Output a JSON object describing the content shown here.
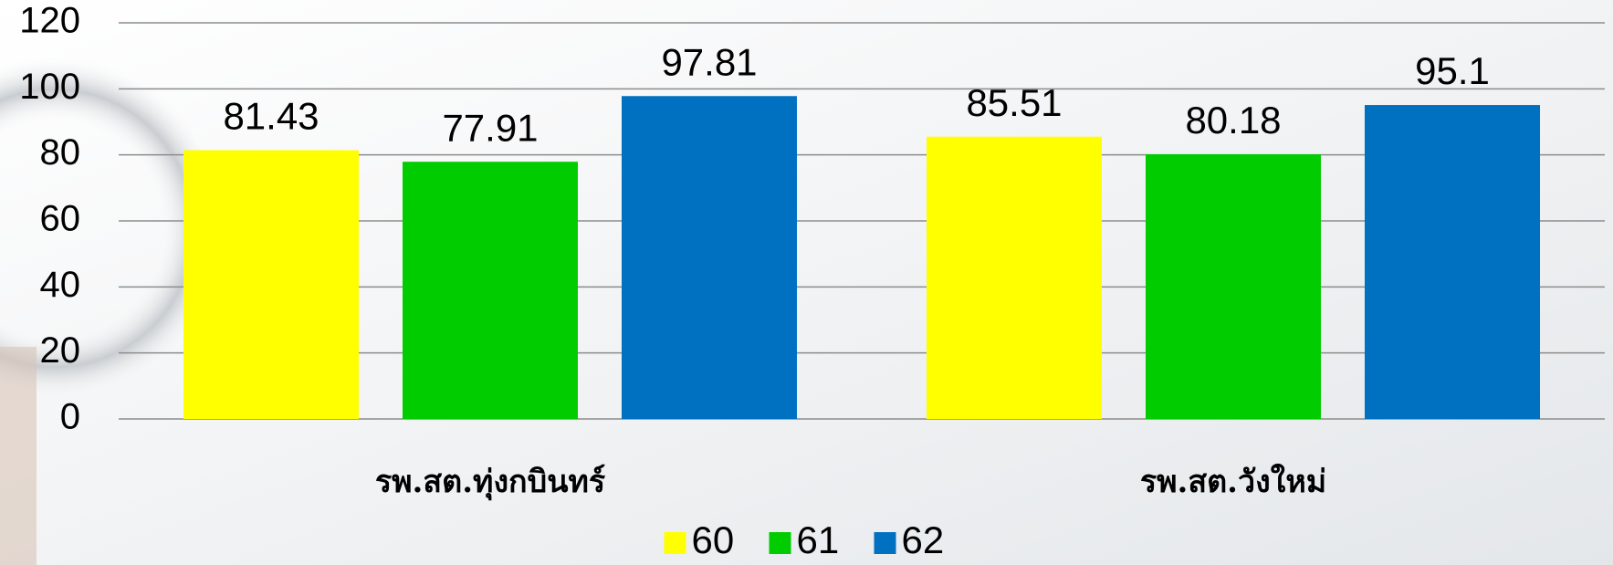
{
  "chart_data": {
    "type": "bar",
    "categories": [
      "รพ.สต.ทุ่งกบินทร์",
      "รพ.สต.วังใหม่"
    ],
    "series": [
      {
        "name": "60",
        "color": "#ffff00",
        "values": [
          81.43,
          85.51
        ]
      },
      {
        "name": "61",
        "color": "#00cc00",
        "values": [
          77.91,
          80.18
        ]
      },
      {
        "name": "62",
        "color": "#0070c0",
        "values": [
          97.81,
          95.1
        ]
      }
    ],
    "ylim": [
      0,
      120
    ],
    "yticks": [
      0,
      20,
      40,
      60,
      80,
      100,
      120
    ],
    "grid": true,
    "legend": "bottom"
  }
}
